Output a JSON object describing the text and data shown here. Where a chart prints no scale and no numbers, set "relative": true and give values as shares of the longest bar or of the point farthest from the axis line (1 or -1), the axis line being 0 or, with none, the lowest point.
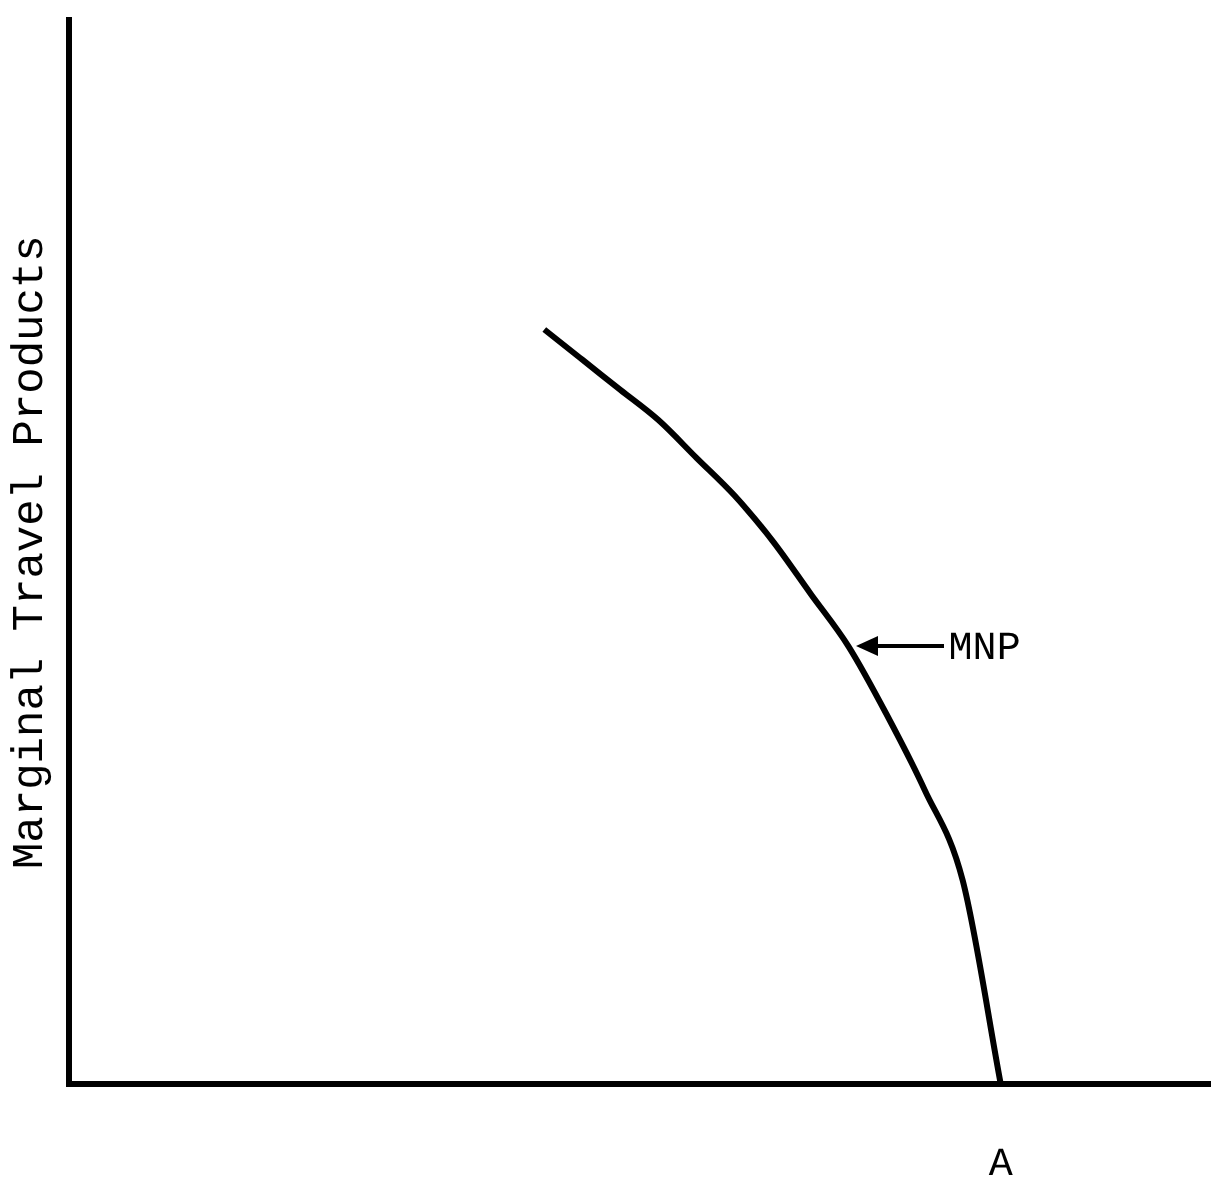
{
  "chart_data": {
    "type": "line",
    "relative": true,
    "ylabel": "Marginal Travel Products",
    "categories": [
      null,
      null,
      null,
      null,
      null,
      null,
      null,
      null,
      null,
      null,
      null,
      null,
      null,
      null,
      null,
      null,
      null,
      null,
      null,
      null,
      null,
      null,
      null,
      null,
      null,
      null,
      null,
      null,
      null,
      null
    ],
    "series": [
      {
        "color": "#000000",
        "values": [
          null,
          null,
          null,
          null,
          null,
          null,
          null,
          null,
          null,
          null,
          null,
          null,
          1,
          0.96,
          0.92,
          0.88,
          0.83,
          0.78,
          0.72,
          0.65,
          0.58,
          0.49,
          0.39,
          0.27,
          0,
          null,
          null,
          null,
          null,
          null
        ]
      }
    ],
    "annotations": [
      "MNP",
      "A"
    ],
    "grid": false,
    "legend": false
  }
}
